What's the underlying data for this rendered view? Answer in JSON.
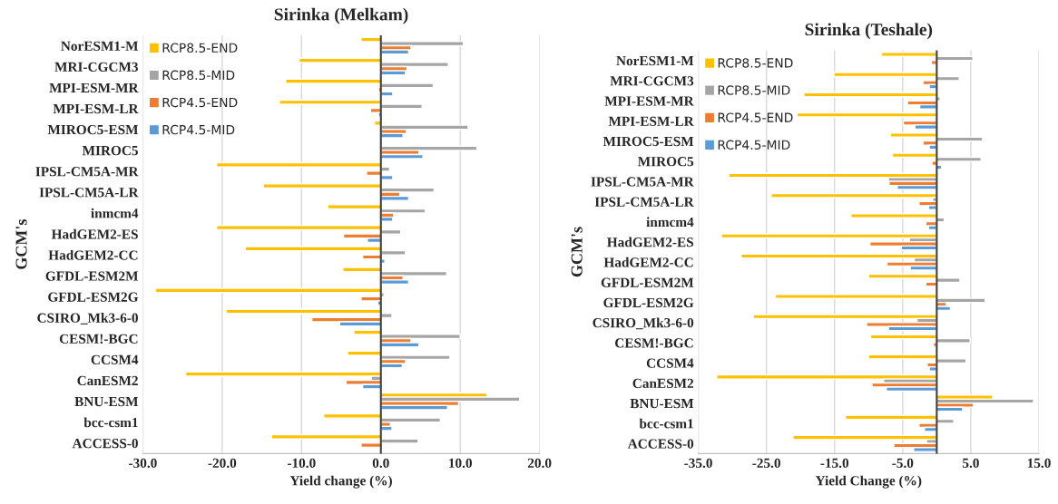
{
  "chart_data": [
    {
      "type": "bar",
      "orientation": "horizontal",
      "title": "Sirinka (Melkam)",
      "xlabel": "Yield change (%)",
      "ylabel": "GCM's",
      "categories": [
        "NorESM1-M",
        "MRI-CGCM3",
        "MPI-ESM-MR",
        "MPI-ESM-LR",
        "MIROC5-ESM",
        "MIROC5",
        "IPSL-CM5A-MR",
        "IPSL-CM5A-LR",
        "inmcm4",
        "HadGEM2-ES",
        "HadGEM2-CC",
        "GFDL-ESM2M",
        "GFDL-ESM2G",
        "CSIRO_Mk3-6-0",
        "CESM!-BGC",
        "CCSM4",
        "CanESM2",
        "BNU-ESM",
        "bcc-csm1",
        "ACCESS-0"
      ],
      "series": [
        {
          "name": "RCP8.5-END",
          "color": "#ffc000",
          "values": [
            -2.5,
            -10.3,
            -12.0,
            -12.8,
            -0.8,
            null,
            -20.7,
            -14.8,
            -6.7,
            -20.7,
            -17.1,
            -4.8,
            -28.4,
            -19.5,
            -3.4,
            -4.2,
            -24.6,
            13.4,
            -7.2,
            -13.8
          ]
        },
        {
          "name": "RCP8.5-MID",
          "color": "#a5a5a5",
          "values": [
            10.4,
            8.5,
            6.6,
            5.2,
            11.0,
            12.1,
            1.1,
            6.7,
            5.6,
            2.5,
            3.1,
            8.3,
            0.4,
            1.4,
            10.0,
            8.7,
            -1.2,
            17.5,
            7.5,
            4.7
          ]
        },
        {
          "name": "RCP4.5-END",
          "color": "#ed7d31",
          "values": [
            3.8,
            3.3,
            -0.3,
            -1.3,
            3.2,
            4.8,
            -1.8,
            2.4,
            1.6,
            -4.7,
            -2.3,
            2.8,
            -2.5,
            -8.7,
            3.8,
            3.1,
            -4.4,
            9.8,
            1.2,
            -2.5
          ]
        },
        {
          "name": "RCP4.5-MID",
          "color": "#5b9bd5",
          "values": [
            3.5,
            3.1,
            1.5,
            -0.3,
            2.8,
            5.3,
            1.5,
            3.5,
            1.5,
            -1.7,
            0.5,
            3.5,
            -0.4,
            -5.2,
            4.8,
            2.7,
            -2.3,
            8.4,
            1.4,
            0.1
          ]
        }
      ],
      "xlim": [
        -30,
        20
      ],
      "xticks": [
        {
          "value": -30,
          "label": "-30.0"
        },
        {
          "value": -20,
          "label": "-20.0"
        },
        {
          "value": -10,
          "label": "-10.0"
        },
        {
          "value": 0,
          "label": "0.0"
        },
        {
          "value": 10,
          "label": "10.0"
        },
        {
          "value": 20,
          "label": "20.0"
        }
      ],
      "ref_lines": [
        {
          "axis": "x",
          "value": 0,
          "color": "#404040"
        }
      ],
      "grid": "x",
      "legend": "top left"
    },
    {
      "type": "bar",
      "orientation": "horizontal",
      "title": "Sirinka (Teshale)",
      "xlabel": "Yield Change (%)",
      "ylabel": "GCM's",
      "categories": [
        "NorESM1-M",
        "MRI-CGCM3",
        "MPI-ESM-MR",
        "MPI-ESM-LR",
        "MIROC5-ESM",
        "MIROC5",
        "IPSL-CM5A-MR",
        "IPSL-CM5A-LR",
        "inmcm4",
        "HadGEM2-ES",
        "HadGEM2-CC",
        "GFDL-ESM2M",
        "GFDL-ESM2G",
        "CSIRO_Mk3-6-0",
        "CESM!-BGC",
        "CCSM4",
        "CanESM2",
        "BNU-ESM",
        "bcc-csm1",
        "ACCESS-0"
      ],
      "series": [
        {
          "name": "RCP8.5-END",
          "color": "#ffc000",
          "values": [
            -8.1,
            -15.1,
            -19.5,
            -20.5,
            -6.8,
            -6.5,
            -30.5,
            -24.3,
            -12.6,
            -31.6,
            -28.7,
            -10.0,
            -23.7,
            -26.9,
            -9.7,
            -10.0,
            -32.3,
            8.2,
            -13.4,
            -21.1
          ]
        },
        {
          "name": "RCP8.5-MID",
          "color": "#a5a5a5",
          "values": [
            5.3,
            3.3,
            0.5,
            0.1,
            6.7,
            6.5,
            -7.1,
            -0.6,
            1.1,
            -4.0,
            -3.3,
            3.4,
            7.1,
            -2.9,
            4.9,
            4.3,
            -7.8,
            14.2,
            2.5,
            -1.5
          ]
        },
        {
          "name": "RCP4.5-END",
          "color": "#ed7d31",
          "values": [
            -0.8,
            -2.0,
            -4.3,
            -4.9,
            -2.0,
            -0.7,
            -7.0,
            -2.6,
            -1.6,
            -9.8,
            -7.3,
            -1.6,
            1.4,
            -10.3,
            -0.5,
            -1.4,
            -9.5,
            5.4,
            -2.6,
            -6.3
          ]
        },
        {
          "name": "RCP4.5-MID",
          "color": "#5b9bd5",
          "values": [
            0.2,
            -1.1,
            -2.5,
            -3.2,
            -1.1,
            0.7,
            -5.8,
            -1.2,
            -1.2,
            -5.2,
            -3.9,
            null,
            2.0,
            -7.1,
            null,
            -1.1,
            -7.4,
            3.8,
            -1.8,
            -3.4
          ]
        }
      ],
      "xlim": [
        -35,
        15
      ],
      "xticks": [
        {
          "value": -35,
          "label": "-35.0"
        },
        {
          "value": -25,
          "label": "-25.0"
        },
        {
          "value": -15,
          "label": "-15.0"
        },
        {
          "value": -5,
          "label": "-5.0"
        },
        {
          "value": 5,
          "label": "5.0"
        },
        {
          "value": 15,
          "label": "15.0"
        }
      ],
      "ref_lines": [
        {
          "axis": "x",
          "value": 0,
          "color": "#404040"
        }
      ],
      "grid": "x",
      "legend": "top left"
    }
  ]
}
